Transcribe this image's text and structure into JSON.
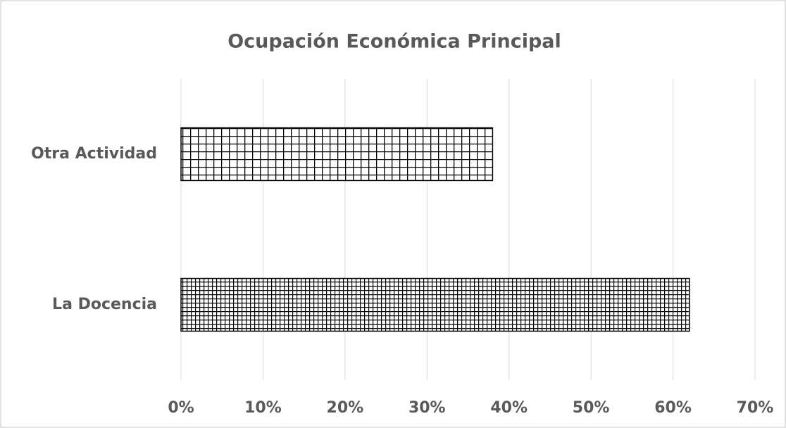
{
  "chart_data": {
    "type": "bar",
    "orientation": "horizontal",
    "title": "Ocupación Económica Principal",
    "categories": [
      "Otra Actividad",
      "La Docencia"
    ],
    "values": [
      38,
      62
    ],
    "color": "#000000",
    "xlim": [
      0,
      70
    ],
    "xticks": [
      {
        "value": 0,
        "label": "0%"
      },
      {
        "value": 10,
        "label": "10%"
      },
      {
        "value": 20,
        "label": "20%"
      },
      {
        "value": 30,
        "label": "30%"
      },
      {
        "value": 40,
        "label": "40%"
      },
      {
        "value": 50,
        "label": "50%"
      },
      {
        "value": 60,
        "label": "60%"
      },
      {
        "value": 70,
        "label": "70%"
      }
    ],
    "grid": true
  }
}
